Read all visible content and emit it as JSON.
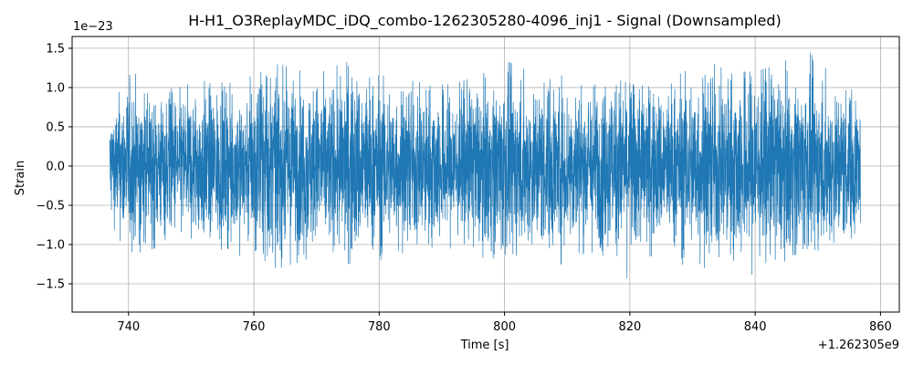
{
  "chart_data": {
    "type": "line",
    "title": "H-H1_O3ReplayMDC_iDQ_combo-1262305280-4096_inj1 - Signal (Downsampled)",
    "xlabel": "Time [s]",
    "ylabel": "Strain",
    "x_offset_label": "+1.262305e9",
    "y_scale_label": "1e−23",
    "x_ticks": [
      740,
      760,
      780,
      800,
      820,
      840,
      860
    ],
    "x_tick_labels": [
      "740",
      "760",
      "780",
      "800",
      "820",
      "840",
      "860"
    ],
    "y_ticks": [
      -1.5,
      -1.0,
      -0.5,
      0.0,
      0.5,
      1.0,
      1.5
    ],
    "y_tick_labels": [
      "−1.5",
      "−1.0",
      "−0.5",
      "0.0",
      "0.5",
      "1.0",
      "1.5"
    ],
    "xlim": [
      731,
      863
    ],
    "ylim": [
      -1.86,
      1.65
    ],
    "grid": true,
    "line_color": "#1f77b4",
    "series": [
      {
        "x_range": [
          737.0,
          856.8
        ],
        "envelope_x": [
          737,
          740,
          744,
          748,
          752,
          756,
          760,
          764,
          768,
          772,
          776,
          780,
          784,
          788,
          792,
          796,
          800,
          804,
          808,
          812,
          816,
          820,
          824,
          828,
          832,
          836,
          840,
          844,
          848,
          852,
          856.8
        ],
        "envelope_max": [
          0.85,
          1.2,
          1.1,
          1.0,
          1.1,
          1.05,
          1.15,
          1.3,
          1.2,
          1.25,
          1.35,
          1.2,
          1.1,
          1.05,
          1.05,
          1.15,
          1.35,
          1.2,
          1.2,
          1.1,
          1.15,
          1.05,
          1.0,
          1.2,
          1.35,
          1.2,
          1.2,
          1.3,
          1.5,
          1.2,
          1.1
        ],
        "envelope_min": [
          -0.7,
          -1.15,
          -1.05,
          -1.0,
          -1.1,
          -1.05,
          -1.25,
          -1.3,
          -1.2,
          -1.05,
          -1.3,
          -1.2,
          -1.1,
          -1.2,
          -1.1,
          -1.15,
          -1.25,
          -1.1,
          -1.3,
          -1.1,
          -1.25,
          -1.55,
          -1.1,
          -1.25,
          -1.3,
          -1.35,
          -1.7,
          -1.25,
          -1.05,
          -1.1,
          -1.0
        ]
      }
    ]
  }
}
